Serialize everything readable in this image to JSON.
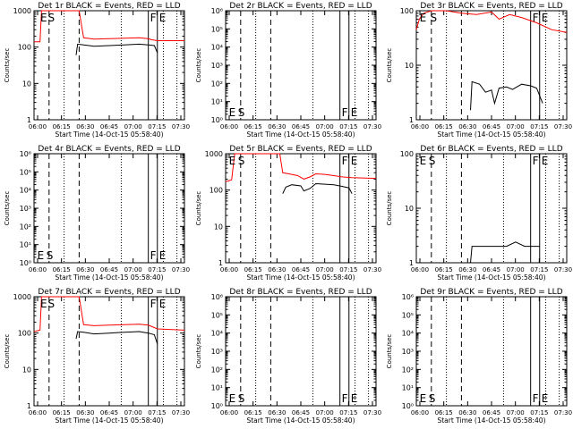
{
  "figure": {
    "subplot_title_suffix": "BLACK = Events, RED = LLD",
    "xlabel": "Start Time (14-Oct-15 05:58:40)",
    "ylabel": "Counts/sec",
    "colors": {
      "events": "#000000",
      "lld": "#ff0000"
    },
    "xticks": [
      "06:00",
      "06:15",
      "06:30",
      "06:45",
      "07:00",
      "07:15",
      "07:30"
    ]
  },
  "chart_data": [
    {
      "type": "line",
      "title": "Det 1r BLACK = Events, RED = LLD",
      "yscale": "log",
      "ylim": [
        1,
        1000
      ],
      "yticks": [
        "1",
        "10",
        "100",
        "1000"
      ],
      "markers": [
        {
          "label": "E",
          "x": 0.03
        },
        {
          "label": "S",
          "x": 0.08
        },
        {
          "label": "F",
          "x": 0.76
        },
        {
          "label": "E",
          "x": 0.82
        }
      ],
      "series": [
        {
          "name": "LLD",
          "color": "#ff0000",
          "points": [
            [
              0,
              140
            ],
            [
              0.04,
              140
            ],
            [
              0.05,
              1000
            ],
            [
              0.3,
              1000
            ],
            [
              0.33,
              180
            ],
            [
              0.4,
              165
            ],
            [
              0.5,
              170
            ],
            [
              0.6,
              175
            ],
            [
              0.7,
              180
            ],
            [
              0.76,
              170
            ],
            [
              0.78,
              160
            ],
            [
              0.82,
              150
            ],
            [
              1,
              150
            ]
          ]
        },
        {
          "name": "Events",
          "color": "#000000",
          "points": [
            [
              0.28,
              60
            ],
            [
              0.29,
              120
            ],
            [
              0.33,
              115
            ],
            [
              0.4,
              105
            ],
            [
              0.5,
              110
            ],
            [
              0.6,
              115
            ],
            [
              0.7,
              120
            ],
            [
              0.76,
              115
            ],
            [
              0.8,
              110
            ],
            [
              0.82,
              70
            ]
          ]
        }
      ]
    },
    {
      "type": "line",
      "title": "Det 2r BLACK = Events, RED = LLD",
      "yscale": "log",
      "ylim": [
        1,
        1000000
      ],
      "yticks": [
        "10⁰",
        "10¹",
        "10²",
        "10³",
        "10⁴",
        "10⁵",
        "10⁶"
      ],
      "markers": [
        {
          "label": "E",
          "x": 0.01
        },
        {
          "label": "S",
          "x": 0.07
        },
        {
          "label": "F",
          "x": 0.76
        },
        {
          "label": "E",
          "x": 0.82
        }
      ],
      "series": []
    },
    {
      "type": "line",
      "title": "Det 3r BLACK = Events, RED = LLD",
      "yscale": "log",
      "ylim": [
        1,
        100
      ],
      "yticks": [
        "1",
        "10",
        "100"
      ],
      "markers": [
        {
          "label": "E",
          "x": 0.01
        },
        {
          "label": "S",
          "x": 0.08
        },
        {
          "label": "F",
          "x": 0.76
        },
        {
          "label": "E",
          "x": 0.82
        }
      ],
      "series": [
        {
          "name": "LLD",
          "color": "#ff0000",
          "points": [
            [
              0,
              45
            ],
            [
              0.02,
              70
            ],
            [
              0.05,
              90
            ],
            [
              0.1,
              100
            ],
            [
              0.2,
              100
            ],
            [
              0.3,
              90
            ],
            [
              0.4,
              85
            ],
            [
              0.5,
              95
            ],
            [
              0.55,
              70
            ],
            [
              0.62,
              85
            ],
            [
              0.7,
              75
            ],
            [
              0.8,
              60
            ],
            [
              0.9,
              45
            ],
            [
              1,
              40
            ]
          ]
        },
        {
          "name": "Events",
          "color": "#000000",
          "points": [
            [
              0.36,
              1.5
            ],
            [
              0.37,
              5
            ],
            [
              0.42,
              4.5
            ],
            [
              0.46,
              3.2
            ],
            [
              0.5,
              3.5
            ],
            [
              0.52,
              2
            ],
            [
              0.55,
              3.8
            ],
            [
              0.6,
              4
            ],
            [
              0.64,
              3.6
            ],
            [
              0.7,
              4.5
            ],
            [
              0.76,
              4.2
            ],
            [
              0.8,
              3.8
            ],
            [
              0.84,
              2
            ]
          ]
        }
      ]
    },
    {
      "type": "line",
      "title": "Det 4r BLACK = Events, RED = LLD",
      "yscale": "log",
      "ylim": [
        1,
        1000000
      ],
      "yticks": [
        "10⁰",
        "10¹",
        "10²",
        "10³",
        "10⁴",
        "10⁵",
        "10⁶"
      ],
      "markers": [
        {
          "label": "E",
          "x": 0.01
        },
        {
          "label": "S",
          "x": 0.07
        },
        {
          "label": "F",
          "x": 0.76
        },
        {
          "label": "E",
          "x": 0.82
        }
      ],
      "series": []
    },
    {
      "type": "line",
      "title": "Det 5r BLACK = Events, RED = LLD",
      "yscale": "log",
      "ylim": [
        1,
        1000
      ],
      "yticks": [
        "1",
        "10",
        "100",
        "1000"
      ],
      "markers": [
        {
          "label": "E",
          "x": 0.01
        },
        {
          "label": "S",
          "x": 0.07
        },
        {
          "label": "F",
          "x": 0.76
        },
        {
          "label": "E",
          "x": 0.82
        }
      ],
      "series": [
        {
          "name": "LLD",
          "color": "#ff0000",
          "points": [
            [
              0,
              170
            ],
            [
              0.04,
              190
            ],
            [
              0.06,
              1000
            ],
            [
              0.36,
              1000
            ],
            [
              0.38,
              300
            ],
            [
              0.42,
              280
            ],
            [
              0.48,
              250
            ],
            [
              0.52,
              200
            ],
            [
              0.56,
              230
            ],
            [
              0.6,
              280
            ],
            [
              0.66,
              270
            ],
            [
              0.72,
              250
            ],
            [
              0.78,
              230
            ],
            [
              0.84,
              220
            ],
            [
              1,
              210
            ]
          ]
        },
        {
          "name": "Events",
          "color": "#000000",
          "points": [
            [
              0.38,
              80
            ],
            [
              0.4,
              120
            ],
            [
              0.44,
              140
            ],
            [
              0.5,
              130
            ],
            [
              0.52,
              95
            ],
            [
              0.56,
              110
            ],
            [
              0.6,
              150
            ],
            [
              0.66,
              145
            ],
            [
              0.72,
              140
            ],
            [
              0.78,
              125
            ],
            [
              0.82,
              115
            ],
            [
              0.84,
              80
            ]
          ]
        }
      ]
    },
    {
      "type": "line",
      "title": "Det 6r BLACK = Events, RED = LLD",
      "yscale": "log",
      "ylim": [
        1,
        100
      ],
      "yticks": [
        "1",
        "10",
        "100"
      ],
      "markers": [
        {
          "label": "E",
          "x": 0.01
        },
        {
          "label": "S",
          "x": 0.07
        },
        {
          "label": "F",
          "x": 0.76
        },
        {
          "label": "E",
          "x": 0.82
        }
      ],
      "series": [
        {
          "name": "Events",
          "color": "#000000",
          "points": [
            [
              0.36,
              1
            ],
            [
              0.37,
              2
            ],
            [
              0.42,
              2
            ],
            [
              0.5,
              2
            ],
            [
              0.6,
              2
            ],
            [
              0.66,
              2.4
            ],
            [
              0.72,
              2
            ],
            [
              0.8,
              2
            ],
            [
              0.82,
              2
            ]
          ]
        }
      ]
    },
    {
      "type": "line",
      "title": "Det 7r BLACK = Events, RED = LLD",
      "yscale": "log",
      "ylim": [
        1,
        1000
      ],
      "yticks": [
        "1",
        "10",
        "100",
        "1000"
      ],
      "markers": [
        {
          "label": "E",
          "x": 0.03
        },
        {
          "label": "S",
          "x": 0.08
        },
        {
          "label": "F",
          "x": 0.76
        },
        {
          "label": "E",
          "x": 0.82
        }
      ],
      "series": [
        {
          "name": "LLD",
          "color": "#ff0000",
          "points": [
            [
              0,
              110
            ],
            [
              0.04,
              120
            ],
            [
              0.05,
              1000
            ],
            [
              0.3,
              1000
            ],
            [
              0.33,
              170
            ],
            [
              0.4,
              160
            ],
            [
              0.5,
              165
            ],
            [
              0.6,
              170
            ],
            [
              0.7,
              175
            ],
            [
              0.76,
              165
            ],
            [
              0.82,
              130
            ],
            [
              1,
              120
            ]
          ]
        },
        {
          "name": "Events",
          "color": "#000000",
          "points": [
            [
              0.28,
              70
            ],
            [
              0.29,
              110
            ],
            [
              0.33,
              105
            ],
            [
              0.4,
              95
            ],
            [
              0.5,
              100
            ],
            [
              0.6,
              105
            ],
            [
              0.7,
              110
            ],
            [
              0.76,
              100
            ],
            [
              0.8,
              90
            ],
            [
              0.82,
              50
            ]
          ]
        }
      ]
    },
    {
      "type": "line",
      "title": "Det 8r BLACK = Events, RED = LLD",
      "yscale": "log",
      "ylim": [
        1,
        1000000
      ],
      "yticks": [
        "10⁰",
        "10¹",
        "10²",
        "10³",
        "10⁴",
        "10⁵",
        "10⁶"
      ],
      "markers": [
        {
          "label": "E",
          "x": 0.01
        },
        {
          "label": "S",
          "x": 0.07
        },
        {
          "label": "F",
          "x": 0.76
        },
        {
          "label": "E",
          "x": 0.82
        }
      ],
      "series": []
    },
    {
      "type": "line",
      "title": "Det 9r BLACK = Events, RED = LLD",
      "yscale": "log",
      "ylim": [
        1,
        1000000
      ],
      "yticks": [
        "10⁰",
        "10¹",
        "10²",
        "10³",
        "10⁴",
        "10⁵",
        "10⁶"
      ],
      "markers": [
        {
          "label": "E",
          "x": 0.01
        },
        {
          "label": "S",
          "x": 0.07
        },
        {
          "label": "F",
          "x": 0.76
        },
        {
          "label": "E",
          "x": 0.82
        }
      ],
      "series": []
    }
  ]
}
